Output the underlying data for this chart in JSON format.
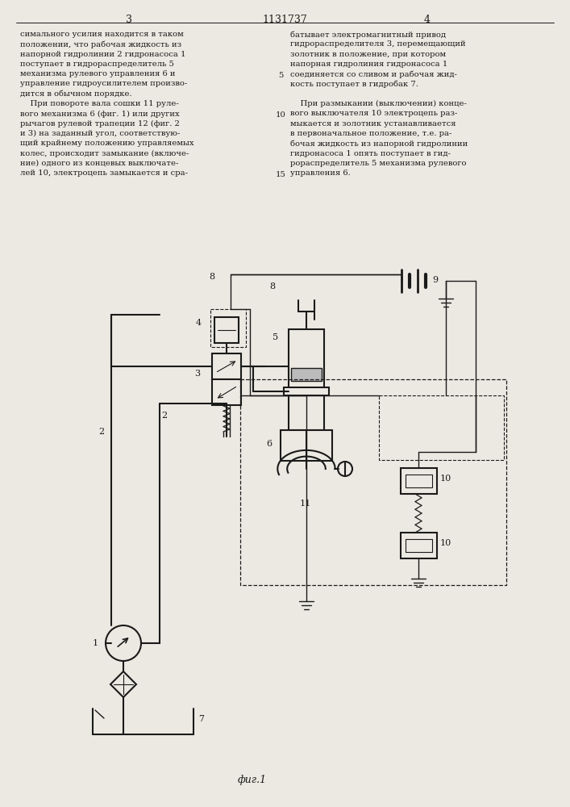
{
  "title": "1131737",
  "page_left": "3",
  "page_right": "4",
  "fig_label": "фиг.1",
  "text_col1": "симального усилия находится в таком\nположении, что рабочая жидкость из\nнапорной гидролинии 2 гидронасоса 1\nпоступает в гидрораспределитель 5\nмеханизма рулевого управления 6 и\nуправление гидроусилителем произво-\nдится в обычном порядке.\n    При повороте вала сошки 11 руле-\nвого механизма 6 (фиг. 1) или других\nрычагов рулевой трапеции 12 (фиг. 2\nи 3) на заданный угол, соответствую-\nщий крайнему положению управляемых\nколес, происходит замыкание (включе-\nние) одного из концевых выключате-\nлей 10, электроцепь замыкается и сра-",
  "text_col2": "батывает электромагнитный привод\nгидрораспределителя 3, перемещающий\nзолотник в положение, при котором\nнапорная гидролиния гидронасоса 1\nсоединяется со сливом и рабочая жид-\nкость поступает в гидробак 7.\n\n    При размыкании (выключении) конце-\nвого выключателя 10 электроцепь раз-\nмыкается и золотник устанавливается\nв первоначальное положение, т.е. ра-\nбочая жидкость из напорной гидролинии\nгидронасоса 1 опять поступает в гид-\nрораспределитель 5 механизма рулевого\nуправления 6.",
  "bg_color": "#ece9e2",
  "line_color": "#1a1a1a",
  "text_color": "#1a1a1a"
}
